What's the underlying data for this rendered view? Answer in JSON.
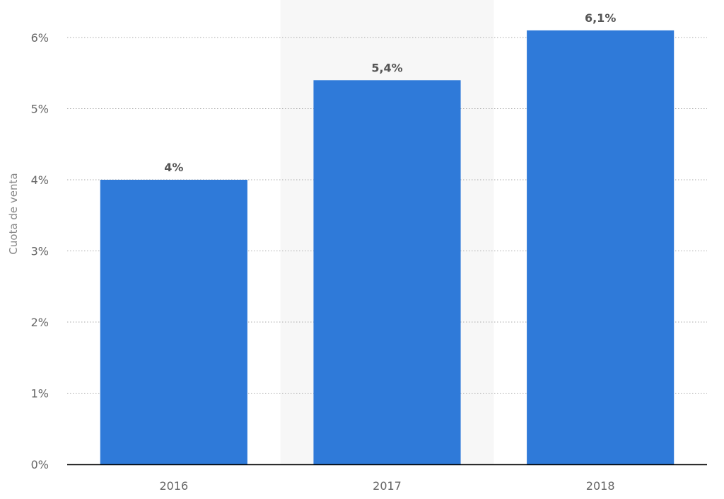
{
  "chart_data": {
    "type": "bar",
    "title": "",
    "xlabel": "",
    "ylabel": "Cuota de venta",
    "categories": [
      "2016",
      "2017",
      "2018"
    ],
    "values": [
      4.0,
      5.4,
      6.1
    ],
    "value_labels": [
      "4%",
      "5,4%",
      "6,1%"
    ],
    "ylim": [
      0,
      6
    ],
    "yticks": [
      0,
      1,
      2,
      3,
      4,
      5,
      6
    ],
    "ytick_labels": [
      "0%",
      "1%",
      "2%",
      "3%",
      "4%",
      "5%",
      "6%"
    ],
    "grid": "horizontal-dotted",
    "highlighted_category": "2017",
    "bar_color": "#2f7ad9",
    "highlight_background": "#f7f7f7",
    "grid_color": "#aaaaaa",
    "axis_color": "#000000"
  }
}
